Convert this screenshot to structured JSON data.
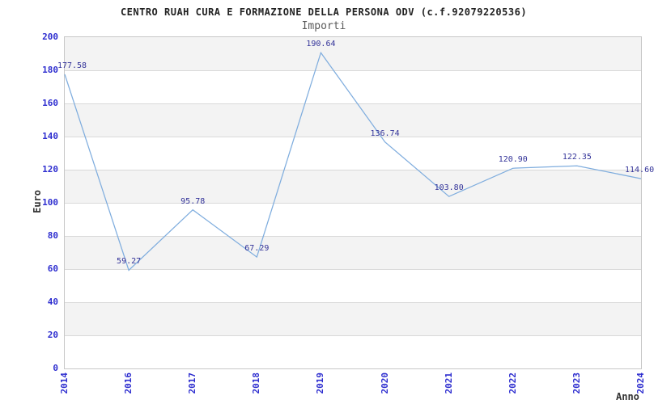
{
  "chart_data": {
    "type": "line",
    "title": "CENTRO RUAH CURA E FORMAZIONE DELLA PERSONA ODV (c.f.92079220536)",
    "subtitle": "Importi",
    "xlabel": "Anno",
    "ylabel": "Euro",
    "categories": [
      "2014",
      "2016",
      "2017",
      "2018",
      "2019",
      "2020",
      "2021",
      "2022",
      "2023",
      "2024"
    ],
    "values": [
      177.58,
      59.27,
      95.78,
      67.29,
      190.64,
      136.74,
      103.8,
      120.9,
      122.35,
      114.6
    ],
    "point_labels": [
      "177.58",
      "59.27",
      "95.78",
      "67.29",
      "190.64",
      "136.74",
      "103.80",
      "120.90",
      "122.35",
      "114.60"
    ],
    "yticks": [
      0,
      20,
      40,
      60,
      80,
      100,
      120,
      140,
      160,
      180,
      200
    ],
    "ylim": [
      0,
      200
    ],
    "grid": true,
    "legend": "none",
    "band_pattern": "alternating horizontal bands, shaded band at top (180-200)"
  },
  "colors": {
    "title": "#222222",
    "subtitle": "#5a5a5a",
    "axis_title": "#333333",
    "tick_label": "#2d2dcf",
    "point_label": "#333399",
    "line": "#7fadde",
    "band": "#f3f3f3",
    "gridline": "#d9d9d9",
    "plot_border": "#c8c8c8",
    "background": "#ffffff"
  }
}
